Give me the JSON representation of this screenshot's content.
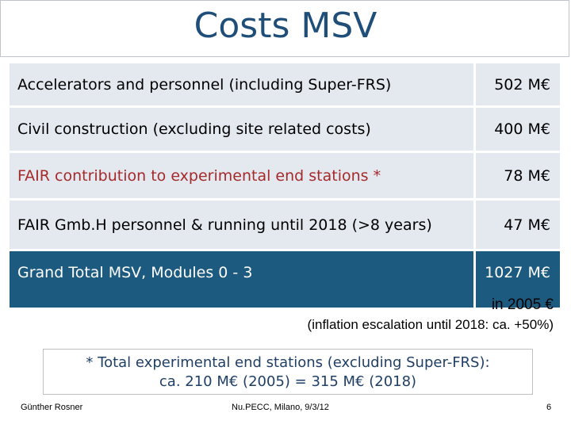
{
  "title": "Costs MSV",
  "rows": [
    {
      "label": "Accelerators and personnel (including Super-FRS)",
      "value": "502 M€"
    },
    {
      "label": "Civil construction (excluding site related costs)",
      "value": "400 M€"
    },
    {
      "label": "FAIR contribution to experimental end stations *",
      "value": "78 M€"
    },
    {
      "label": "FAIR Gmb.H personnel & running until 2018 (>8 years)",
      "value": "47 M€"
    }
  ],
  "total": {
    "label": "Grand Total MSV, Modules 0 - 3",
    "value": "1027 M€"
  },
  "year_note": "in 2005 €",
  "inflation_note": "(inflation escalation until 2018: ca. +50%)",
  "footnote": {
    "line1": "* Total experimental end stations (excluding Super-FRS):",
    "line2": "ca. 210 M€ (2005) = 315 M€ (2018)"
  },
  "footer": {
    "author": "Günther Rosner",
    "event": "Nu.PECC, Milano, 9/3/12",
    "page": "6"
  },
  "colors": {
    "title": "#1f4e79",
    "row_bg": "#e4e8ef",
    "total_bg": "#1d5a80",
    "highlight_text": "#a52a2a"
  }
}
